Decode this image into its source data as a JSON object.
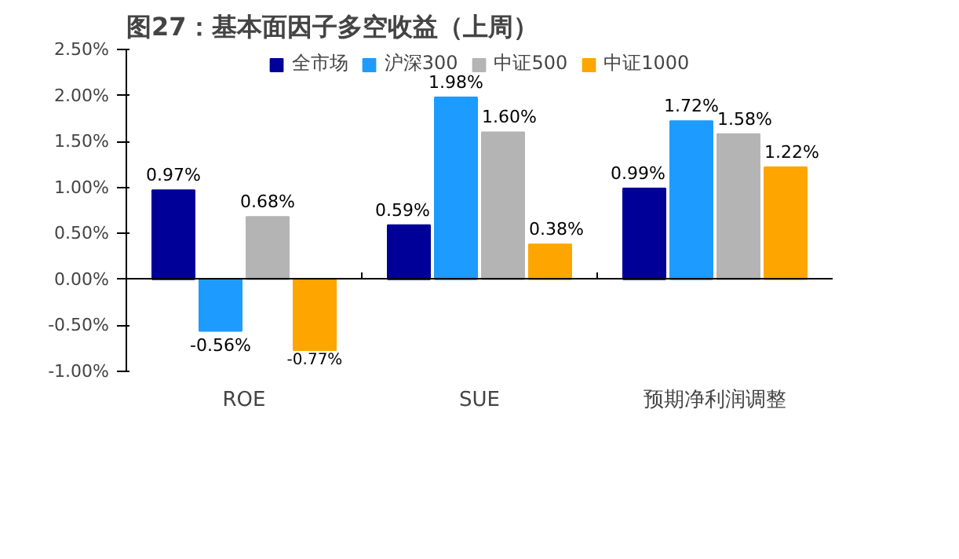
{
  "chart_data": {
    "type": "bar",
    "title": "图27：基本面因子多空收益（上周）",
    "categories": [
      "ROE",
      "SUE",
      "预期净利润调整"
    ],
    "series": [
      {
        "name": "全市场",
        "color": "#000099",
        "values": [
          0.97,
          0.59,
          0.99
        ],
        "value_labels": [
          "0.97%",
          "0.59%",
          "0.99%"
        ]
      },
      {
        "name": "沪深300",
        "color": "#1e9bff",
        "values": [
          -0.56,
          1.98,
          1.72
        ],
        "value_labels": [
          "-0.56%",
          "1.98%",
          "1.72%"
        ]
      },
      {
        "name": "中证500",
        "color": "#b4b4b4",
        "values": [
          0.68,
          1.6,
          1.58
        ],
        "value_labels": [
          "0.68%",
          "1.60%",
          "1.58%"
        ]
      },
      {
        "name": "中证1000",
        "color": "#ffa500",
        "values": [
          -0.77,
          0.38,
          1.22
        ],
        "value_labels": [
          "-0.77%",
          "0.38%",
          "1.22%"
        ]
      }
    ],
    "ylim": [
      -1.0,
      2.5
    ],
    "yticks": [
      {
        "value": -1.0,
        "label": "-1.00%"
      },
      {
        "value": -0.5,
        "label": "-0.50%"
      },
      {
        "value": 0.0,
        "label": "0.00%"
      },
      {
        "value": 0.5,
        "label": "0.50%"
      },
      {
        "value": 1.0,
        "label": "1.00%"
      },
      {
        "value": 1.5,
        "label": "1.50%"
      },
      {
        "value": 2.0,
        "label": "2.00%"
      },
      {
        "value": 2.5,
        "label": "2.50%"
      }
    ],
    "legend": "top"
  }
}
